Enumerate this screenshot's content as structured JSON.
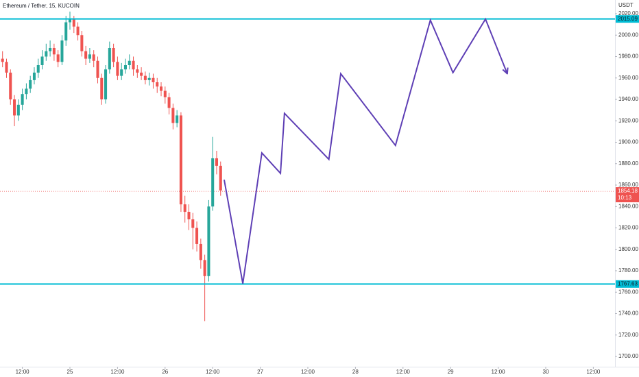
{
  "chart_data": {
    "type": "candlestick",
    "title": "Ethereum / Tether, 15, KUCOIN",
    "y_axis_label": "USDT",
    "up_color": "#26a69a",
    "down_color": "#ef5350",
    "x": [
      -17,
      -16,
      -15,
      -14,
      -13,
      -12,
      -11,
      -10,
      -9,
      -8,
      -7,
      -6,
      -5,
      -4,
      -3,
      -2,
      -1,
      0,
      1,
      2,
      3,
      4,
      5,
      6,
      7,
      8,
      9,
      10,
      11,
      12,
      13,
      14,
      15,
      16,
      17,
      18,
      19,
      20,
      21,
      22,
      23,
      24,
      25,
      26,
      27,
      28,
      29,
      30,
      31,
      32,
      33,
      34,
      35,
      36,
      37,
      38
    ],
    "open": [
      1978,
      1975,
      1965,
      1940,
      1925,
      1935,
      1945,
      1950,
      1958,
      1965,
      1972,
      1980,
      1985,
      1988,
      1982,
      1975,
      1995,
      2012,
      2015,
      2008,
      2000,
      1985,
      1978,
      1982,
      1976,
      1960,
      1940,
      1968,
      1988,
      1975,
      1962,
      1968,
      1972,
      1976,
      1968,
      1965,
      1962,
      1958,
      1960,
      1956,
      1952,
      1948,
      1942,
      1932,
      1918,
      1925,
      1842,
      1835,
      1828,
      1820,
      1805,
      1790,
      1775,
      1840,
      1885,
      1878
    ],
    "high": [
      1985,
      1978,
      1968,
      1944,
      1940,
      1950,
      1955,
      1962,
      1970,
      1978,
      1986,
      1992,
      1995,
      1992,
      1986,
      2000,
      2018,
      2022,
      2018,
      2012,
      2004,
      1990,
      1988,
      1986,
      1980,
      1964,
      1972,
      1994,
      1992,
      1980,
      1974,
      1978,
      1982,
      1980,
      1972,
      1970,
      1966,
      1965,
      1964,
      1960,
      1956,
      1952,
      1946,
      1936,
      1930,
      1928,
      1850,
      1842,
      1834,
      1826,
      1810,
      1795,
      1846,
      1905,
      1892,
      1882
    ],
    "low": [
      1970,
      1960,
      1935,
      1915,
      1920,
      1930,
      1940,
      1946,
      1954,
      1960,
      1968,
      1976,
      1980,
      1976,
      1970,
      1972,
      1990,
      2005,
      2002,
      1995,
      1980,
      1972,
      1974,
      1970,
      1955,
      1935,
      1936,
      1964,
      1970,
      1958,
      1958,
      1964,
      1968,
      1962,
      1960,
      1958,
      1954,
      1953,
      1950,
      1946,
      1943,
      1936,
      1926,
      1912,
      1914,
      1835,
      1825,
      1818,
      1800,
      1798,
      1782,
      1733,
      1770,
      1836,
      1870,
      1850
    ],
    "close": [
      1975,
      1965,
      1940,
      1925,
      1935,
      1945,
      1950,
      1958,
      1965,
      1972,
      1980,
      1985,
      1988,
      1982,
      1975,
      1995,
      2012,
      2015,
      2008,
      2000,
      1985,
      1978,
      1982,
      1976,
      1960,
      1940,
      1968,
      1988,
      1975,
      1962,
      1968,
      1972,
      1976,
      1968,
      1965,
      1962,
      1958,
      1960,
      1956,
      1952,
      1948,
      1942,
      1932,
      1918,
      1925,
      1842,
      1835,
      1828,
      1820,
      1805,
      1790,
      1775,
      1840,
      1885,
      1878,
      1855
    ],
    "xlim": [
      -17.64,
      137.47
    ],
    "xticks": [
      {
        "value": -12,
        "label": "12:00"
      },
      {
        "value": 0,
        "label": "25"
      },
      {
        "value": 12,
        "label": "12:00"
      },
      {
        "value": 24,
        "label": "26"
      },
      {
        "value": 36,
        "label": "12:00"
      },
      {
        "value": 48,
        "label": "27"
      },
      {
        "value": 60,
        "label": "12:00"
      },
      {
        "value": 72,
        "label": "28"
      },
      {
        "value": 84,
        "label": "12:00"
      },
      {
        "value": 96,
        "label": "29"
      },
      {
        "value": 108,
        "label": "12:00"
      },
      {
        "value": 120,
        "label": "30"
      },
      {
        "value": 132,
        "label": "12:00"
      }
    ],
    "ylim": [
      1690.4,
      2032.8
    ],
    "yticks": [
      {
        "value": 1700,
        "label": "1700.00"
      },
      {
        "value": 1720,
        "label": "1720.00"
      },
      {
        "value": 1740,
        "label": "1740.00"
      },
      {
        "value": 1760,
        "label": "1760.00"
      },
      {
        "value": 1780,
        "label": "1780.00"
      },
      {
        "value": 1800,
        "label": "1800.00"
      },
      {
        "value": 1820,
        "label": "1820.00"
      },
      {
        "value": 1840,
        "label": "1840.00"
      },
      {
        "value": 1860,
        "label": "1860.00"
      },
      {
        "value": 1880,
        "label": "1880.00"
      },
      {
        "value": 1900,
        "label": "1900.00"
      },
      {
        "value": 1920,
        "label": "1920.00"
      },
      {
        "value": 1940,
        "label": "1940.00"
      },
      {
        "value": 1960,
        "label": "1960.00"
      },
      {
        "value": 1980,
        "label": "1980.00"
      },
      {
        "value": 2000,
        "label": "2000.00"
      },
      {
        "value": 2020,
        "label": "2020.00"
      }
    ],
    "grid": false,
    "levels": [
      {
        "value": 2015.09,
        "color": "#00bcd4"
      },
      {
        "value": 1767.63,
        "color": "#00bcd4"
      }
    ],
    "current_price": {
      "value": 1854.18,
      "countdown": "10:13",
      "color": "#ef5350"
    },
    "projection": {
      "color": "#5e3fb5",
      "x": [
        38.9,
        43.6,
        48.4,
        53.1,
        54.1,
        65.3,
        68.3,
        82.1,
        90.9,
        96.6,
        104.8,
        110.3
      ],
      "y": [
        1865,
        1768,
        1890,
        1871,
        1927,
        1884,
        1964,
        1897,
        2014,
        1965,
        2015,
        1964
      ]
    }
  }
}
